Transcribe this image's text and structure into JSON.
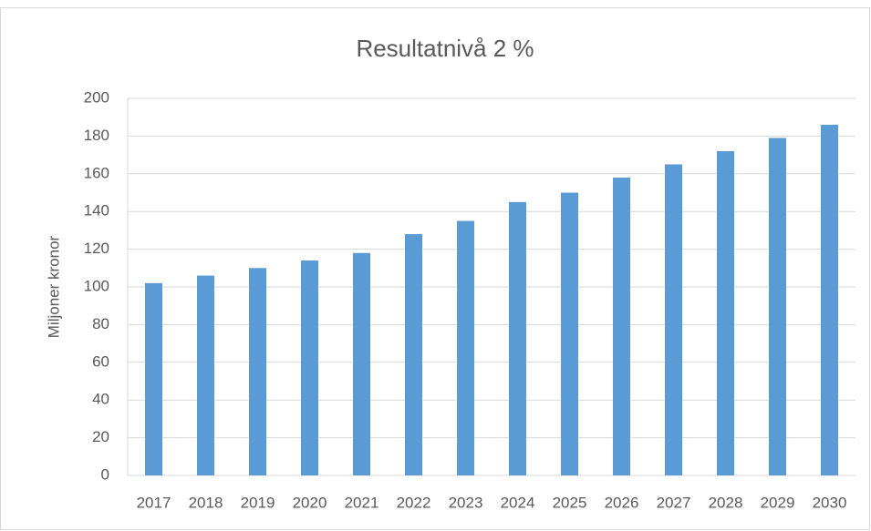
{
  "chart_data": {
    "type": "bar",
    "title": "Resultatnivå 2 %",
    "y_label": "Miljoner kronor",
    "categories": [
      "2017",
      "2018",
      "2019",
      "2020",
      "2021",
      "2022",
      "2023",
      "2024",
      "2025",
      "2026",
      "2027",
      "2028",
      "2029",
      "2030"
    ],
    "values": [
      102,
      106,
      110,
      114,
      118,
      128,
      135,
      145,
      150,
      158,
      165,
      172,
      179,
      186
    ],
    "color": "#5b9bd5",
    "ylim": [
      0,
      200
    ],
    "yticks": [
      0,
      20,
      40,
      60,
      80,
      100,
      120,
      140,
      160,
      180,
      200
    ],
    "grid": true
  }
}
